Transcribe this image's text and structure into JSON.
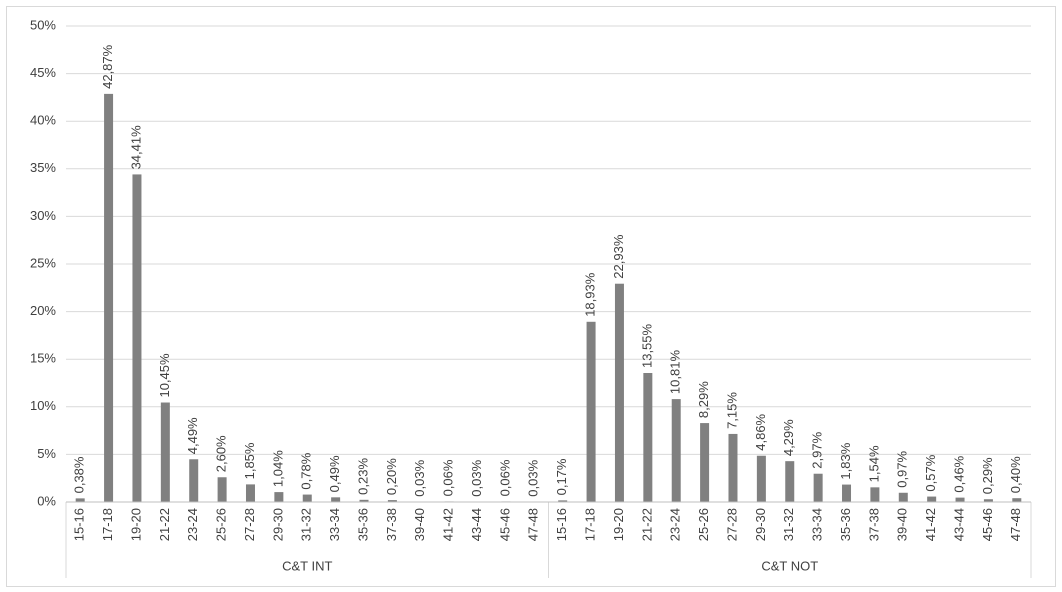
{
  "chart_data": {
    "type": "bar",
    "color": "#808080",
    "grid": true,
    "ylim": [
      0,
      50
    ],
    "yticks": [
      {
        "value": 0,
        "label": "0%"
      },
      {
        "value": 5,
        "label": "5%"
      },
      {
        "value": 10,
        "label": "10%"
      },
      {
        "value": 15,
        "label": "15%"
      },
      {
        "value": 20,
        "label": "20%"
      },
      {
        "value": 25,
        "label": "25%"
      },
      {
        "value": 30,
        "label": "30%"
      },
      {
        "value": 35,
        "label": "35%"
      },
      {
        "value": 40,
        "label": "40%"
      },
      {
        "value": 45,
        "label": "45%"
      },
      {
        "value": 50,
        "label": "50%"
      }
    ],
    "groups": [
      {
        "name": "C&T INT",
        "categories": [
          "15-16",
          "17-18",
          "19-20",
          "21-22",
          "23-24",
          "25-26",
          "27-28",
          "29-30",
          "31-32",
          "33-34",
          "35-36",
          "37-38",
          "39-40",
          "41-42",
          "43-44",
          "45-46",
          "47-48"
        ],
        "values": [
          0.38,
          42.87,
          34.41,
          10.45,
          4.49,
          2.6,
          1.85,
          1.04,
          0.78,
          0.49,
          0.23,
          0.2,
          0.03,
          0.06,
          0.03,
          0.06,
          0.03
        ],
        "value_labels": [
          "0,38%",
          "42,87%",
          "34,41%",
          "10,45%",
          "4,49%",
          "2,60%",
          "1,85%",
          "1,04%",
          "0,78%",
          "0,49%",
          "0,23%",
          "0,20%",
          "0,03%",
          "0,06%",
          "0,03%",
          "0,06%",
          "0,03%"
        ]
      },
      {
        "name": "C&T NOT",
        "categories": [
          "15-16",
          "17-18",
          "19-20",
          "21-22",
          "23-24",
          "25-26",
          "27-28",
          "29-30",
          "31-32",
          "33-34",
          "35-36",
          "37-38",
          "39-40",
          "41-42",
          "43-44",
          "45-46",
          "47-48"
        ],
        "values": [
          0.17,
          18.93,
          22.93,
          13.55,
          10.81,
          8.29,
          7.15,
          4.86,
          4.29,
          2.97,
          1.83,
          1.54,
          0.97,
          0.57,
          0.46,
          0.29,
          0.4
        ],
        "value_labels": [
          "0,17%",
          "18,93%",
          "22,93%",
          "13,55%",
          "10,81%",
          "8,29%",
          "7,15%",
          "4,86%",
          "4,29%",
          "2,97%",
          "1,83%",
          "1,54%",
          "0,97%",
          "0,57%",
          "0,46%",
          "0,29%",
          "0,40%"
        ]
      }
    ]
  }
}
